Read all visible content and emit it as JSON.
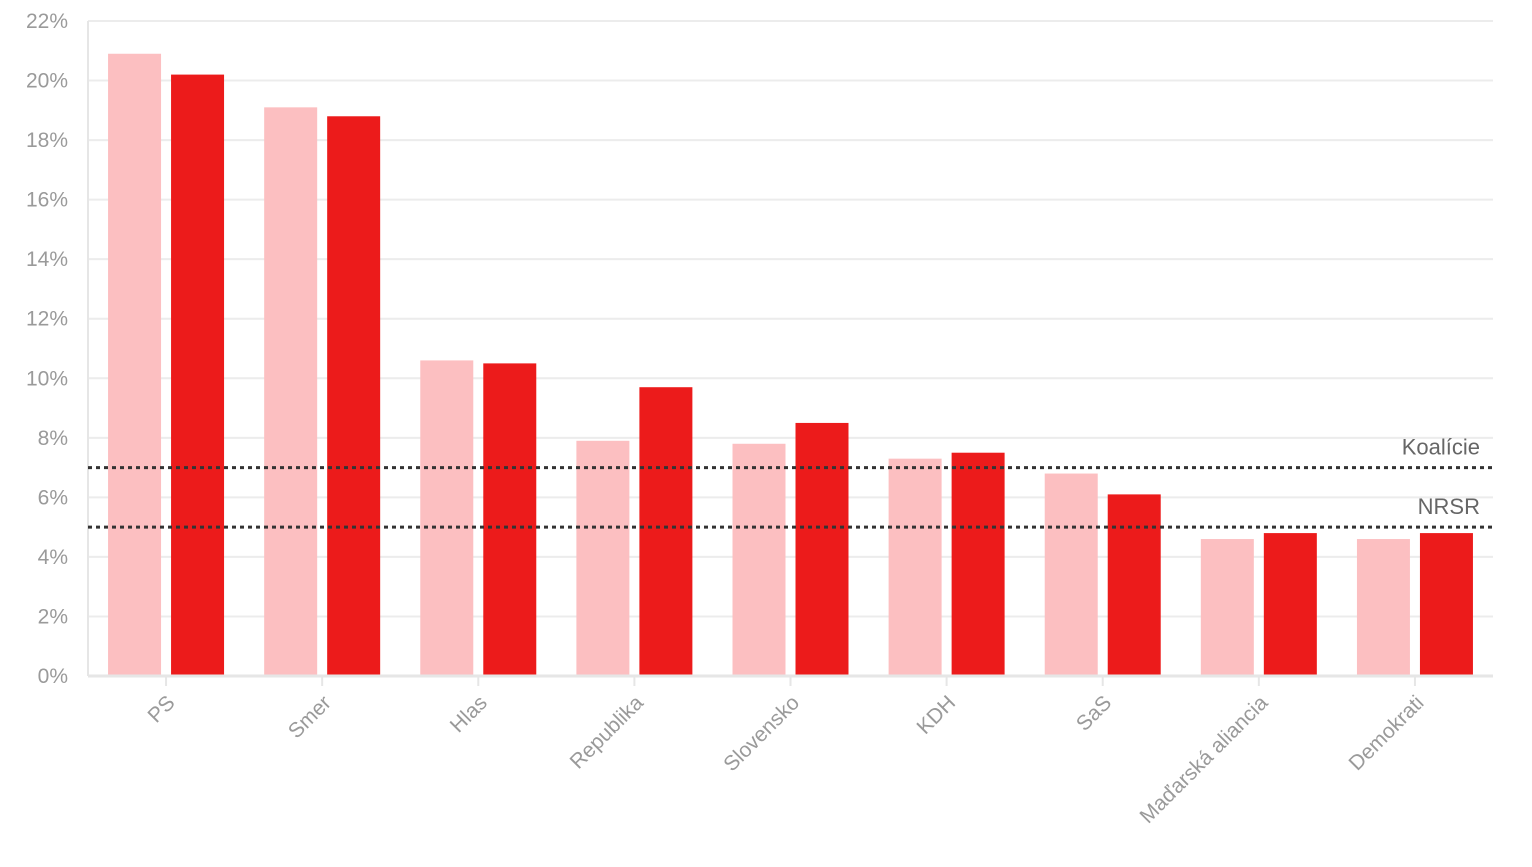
{
  "chart_data": {
    "type": "bar",
    "categories": [
      "PS",
      "Smer",
      "Hlas",
      "Republika",
      "Slovensko",
      "KDH",
      "SaS",
      "Maďarská aliancia",
      "Demokrati"
    ],
    "series": [
      {
        "values": [
          20.9,
          19.1,
          10.6,
          7.9,
          7.8,
          7.3,
          6.8,
          4.6,
          4.6
        ],
        "color": "#fcbfc1"
      },
      {
        "values": [
          20.2,
          18.8,
          10.5,
          9.7,
          8.5,
          7.5,
          6.1,
          4.8,
          4.8
        ],
        "color": "#ec1b1b"
      }
    ],
    "ylim": [
      0,
      22
    ],
    "yticks": [
      0,
      2,
      4,
      6,
      8,
      10,
      12,
      14,
      16,
      18,
      20,
      22
    ],
    "ytick_suffix": "%",
    "reference_lines": [
      {
        "value": 7,
        "label": "Koalície"
      },
      {
        "value": 5,
        "label": "NRSR"
      }
    ],
    "grid": true,
    "legend": "none"
  }
}
